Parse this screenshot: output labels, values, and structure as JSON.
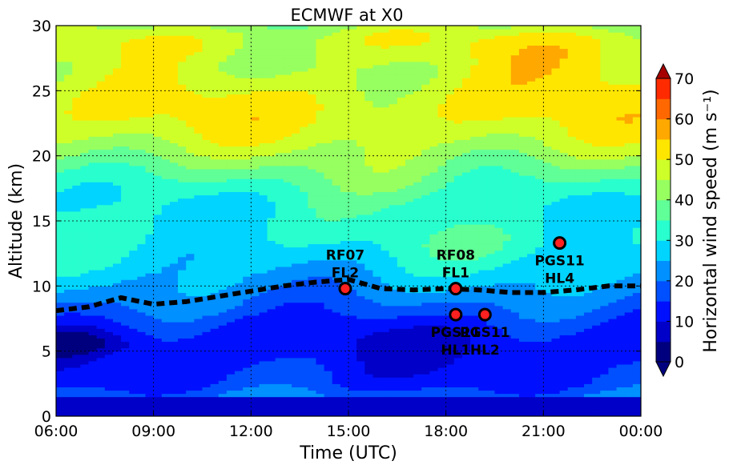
{
  "chart_data": {
    "type": "contourf",
    "title": "ECMWF at X0",
    "xlabel": "Time (UTC)",
    "ylabel": "Altitude (km)",
    "colorbar_label": "Horizontal wind speed (m s⁻¹)",
    "x_tick_labels": [
      "06:00",
      "09:00",
      "12:00",
      "15:00",
      "18:00",
      "21:00",
      "00:00"
    ],
    "x_range_hours": [
      6,
      24
    ],
    "y_ticks": [
      0,
      5,
      10,
      15,
      20,
      25,
      30
    ],
    "ylim": [
      0,
      30
    ],
    "colorbar_ticks": [
      0,
      10,
      20,
      30,
      40,
      50,
      60,
      70
    ],
    "colorbar_range": [
      0,
      70
    ],
    "levels": [
      0,
      5,
      10,
      15,
      20,
      25,
      30,
      35,
      40,
      45,
      50,
      55,
      60,
      65,
      70
    ],
    "colors": [
      "#00007f",
      "#0000c8",
      "#0010ff",
      "#0050ff",
      "#0090ff",
      "#00d4ff",
      "#29ffce",
      "#60ff97",
      "#97ff60",
      "#ceff29",
      "#ffe600",
      "#ffa800",
      "#ff6800",
      "#ff2b00",
      "#a70000"
    ],
    "grid": true,
    "tropopause": {
      "style": "black dashed",
      "x_hours": [
        6,
        7,
        8,
        9,
        10,
        11,
        12,
        13,
        14,
        15,
        16,
        17,
        18,
        19,
        20,
        21,
        22,
        23,
        24
      ],
      "altitude_km": [
        8.1,
        8.4,
        9.1,
        8.6,
        8.8,
        9.2,
        9.6,
        10.0,
        10.3,
        10.5,
        9.8,
        9.7,
        9.8,
        9.7,
        9.5,
        9.5,
        9.7,
        10.0,
        10.0
      ]
    },
    "points": [
      {
        "label_top": "RF07",
        "label_bottom": "FL2",
        "time_h": 14.9,
        "altitude_km": 9.8,
        "label_pos": "above"
      },
      {
        "label_top": "RF08",
        "label_bottom": "FL1",
        "time_h": 18.3,
        "altitude_km": 9.8,
        "label_pos": "above"
      },
      {
        "label_top": "PGS11",
        "label_bottom": "HL1",
        "time_h": 18.3,
        "altitude_km": 7.8,
        "label_pos": "below"
      },
      {
        "label_top": "PGS11",
        "label_bottom": "HL2",
        "time_h": 19.2,
        "altitude_km": 7.8,
        "label_pos": "below"
      },
      {
        "label_top": "PGS11",
        "label_bottom": "HL4",
        "time_h": 21.5,
        "altitude_km": 13.3,
        "label_pos": "below"
      }
    ]
  }
}
